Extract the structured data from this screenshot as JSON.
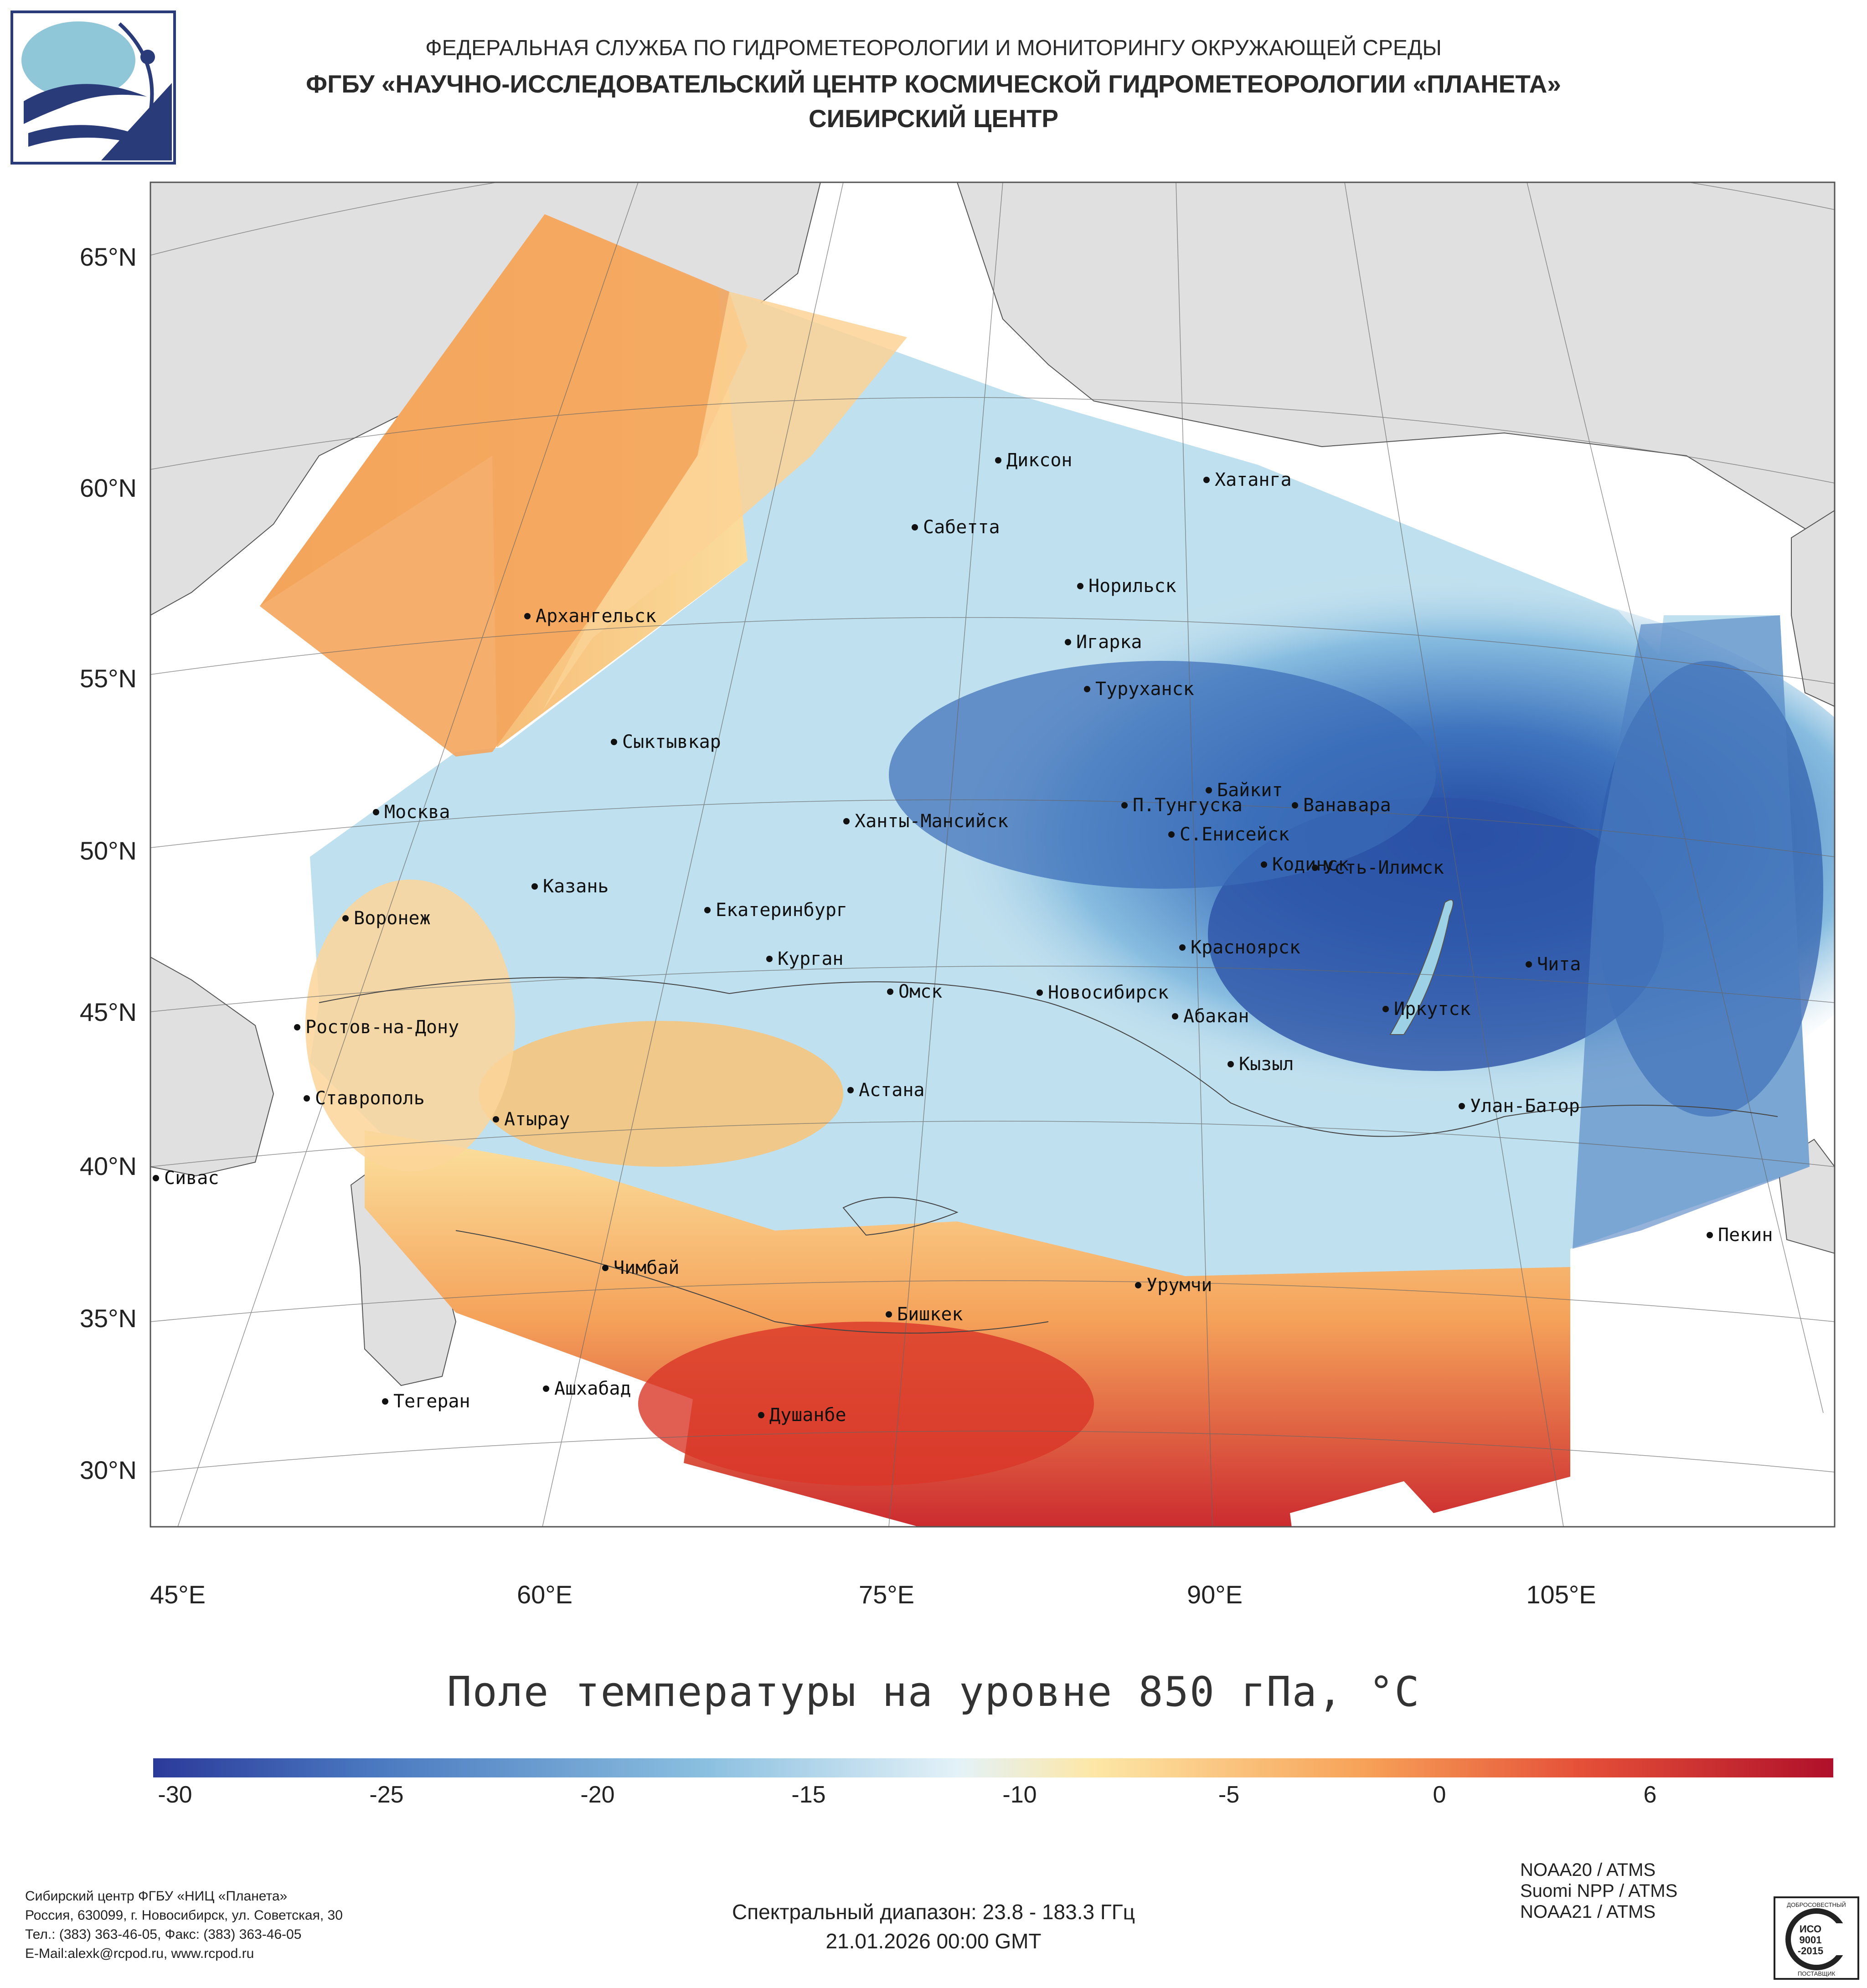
{
  "header": {
    "line1": "ФЕДЕРАЛЬНАЯ СЛУЖБА ПО ГИДРОМЕТЕОРОЛОГИИ И МОНИТОРИНГУ ОКРУЖАЮЩЕЙ СРЕДЫ",
    "line2": "ФГБУ «НАУЧНО-ИССЛЕДОВАТЕЛЬСКИЙ ЦЕНТР КОСМИЧЕСКОЙ ГИДРОМЕТЕОРОЛОГИИ «ПЛАНЕТА»",
    "line3": "СИБИРСКИЙ ЦЕНТР"
  },
  "logo_icon": "planeta-logo-icon",
  "map": {
    "title": "Поле температуры на уровне 850 гПа, °С",
    "lat_labels": [
      "65°N",
      "60°N",
      "55°N",
      "50°N",
      "45°N",
      "40°N",
      "35°N",
      "30°N"
    ],
    "lon_labels": [
      "45°E",
      "60°E",
      "75°E",
      "90°E",
      "105°E"
    ],
    "cities": [
      "Диксон",
      "Хатанга",
      "Сабетта",
      "Норильск",
      "Архангельск",
      "Игарка",
      "Туруханск",
      "Сыктывкар",
      "Байкит",
      "Москва",
      "П.Тунгуска",
      "Ванавара",
      "Ханты-Мансийск",
      "С.Енисейск",
      "Кодинск",
      "Усть-Илимск",
      "Казань",
      "Екатеринбург",
      "Воронеж",
      "Красноярск",
      "Курган",
      "Чита",
      "Омск",
      "Новосибирск",
      "Иркутск",
      "Ростов-на-Дону",
      "Абакан",
      "Кызыл",
      "Ставрополь",
      "Астана",
      "Улан-Батор",
      "Атырау",
      "Сивас",
      "Пекин",
      "Чимбай",
      "Урумчи",
      "Бишкек",
      "Ашхабад",
      "Тегеран",
      "Душанбе"
    ],
    "land_color": "#e0e0e0",
    "cold_color": "#2e5fb0",
    "warm_color": "#c8282e"
  },
  "colorbar": {
    "ticks": [
      "-30",
      "-25",
      "-20",
      "-15",
      "-10",
      "-5",
      "0",
      "6"
    ],
    "colors": [
      "#2b3a9a",
      "#4a78c0",
      "#8cc0e0",
      "#e4f2f8",
      "#fde7a6",
      "#f7a258",
      "#e55038",
      "#b0102a"
    ]
  },
  "footer": {
    "org_lines": [
      "Сибирский центр ФГБУ «НИЦ «Планета»",
      "Россия, 630099, г. Новосибирск, ул. Советская, 30",
      "Тел.: (383) 363-46-05, Факс: (383) 363-46-05",
      "E-Mail:alexk@rcpod.ru, www.rcpod.ru"
    ],
    "spectral": "Спектральный диапазон: 23.8 - 183.3 ГГц",
    "datetime": "21.01.2026 00:00 GMT",
    "sensors": [
      "NOAA20 / ATMS",
      "Suomi NPP / ATMS",
      "NOAA21 / ATMS"
    ],
    "iso_stamp": {
      "top": "ДОБРОСОВЕСТНЫЙ",
      "l1": "ИСО",
      "l2": "9001",
      "l3": "-2015",
      "bottom": "ПОСТАВЩИК"
    }
  }
}
